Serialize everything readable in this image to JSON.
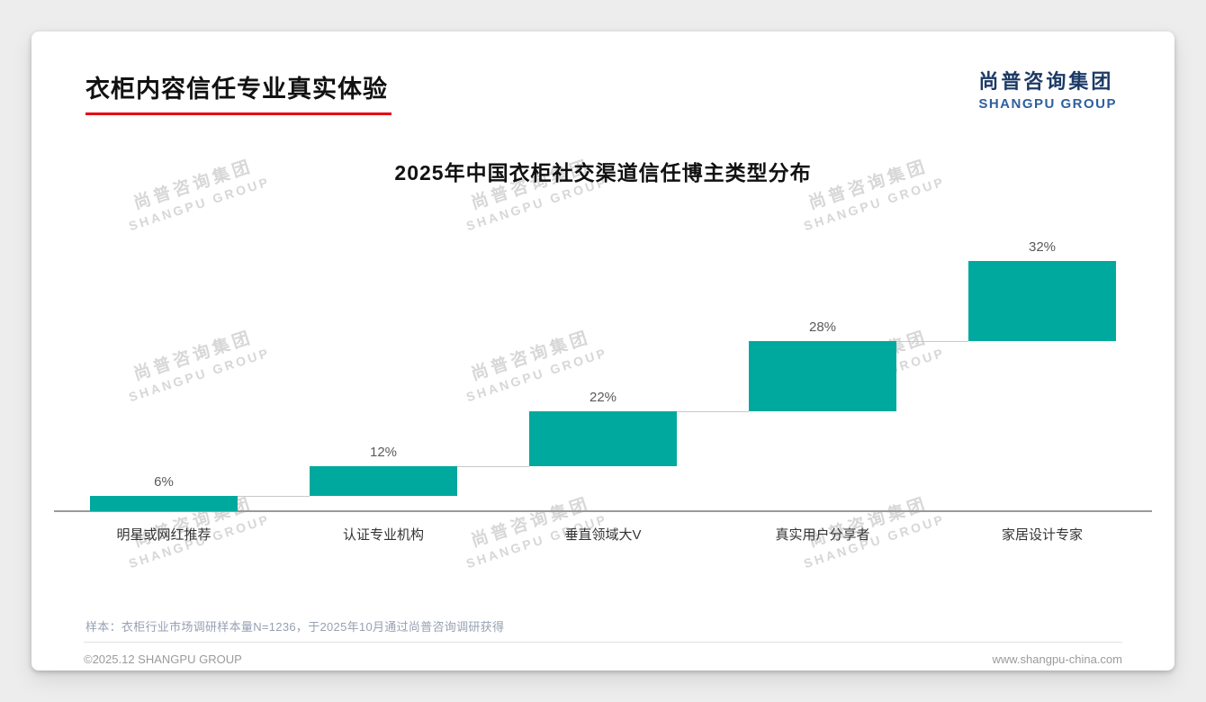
{
  "page": {
    "title": "衣柜内容信任专业真实体验",
    "logo": {
      "cn": "尚普咨询集团",
      "en": "SHANGPU GROUP"
    },
    "watermark": {
      "cn": "尚普咨询集团",
      "en": "SHANGPU GROUP"
    },
    "note": "样本：衣柜行业市场调研样本量N=1236，于2025年10月通过尚普咨询调研获得",
    "footer_left": "©2025.12 SHANGPU GROUP",
    "footer_right": "www.shangpu-china.com"
  },
  "chart_data": {
    "type": "bar",
    "subtype": "waterfall-steps",
    "title": "2025年中国衣柜社交渠道信任博主类型分布",
    "categories": [
      "明星或网红推荐",
      "认证专业机构",
      "垂直领域大V",
      "真实用户分享者",
      "家居设计专家"
    ],
    "values": [
      6,
      12,
      22,
      28,
      32
    ],
    "value_labels": [
      "6%",
      "12%",
      "22%",
      "28%",
      "32%"
    ],
    "unit": "%",
    "ylim": [
      0,
      100
    ],
    "grid": false,
    "legend": "none",
    "bar_color": "#00A99D",
    "connector_color": "#c9c9c9",
    "baseline_color": "#9a9a9a"
  },
  "colors": {
    "accent_red": "#E60012",
    "logo_navy": "#1C3A66",
    "logo_blue": "#2E5F9E",
    "bar_teal": "#00A99D",
    "page_bg": "#EDEDEE",
    "card_bg": "#FFFFFF"
  }
}
